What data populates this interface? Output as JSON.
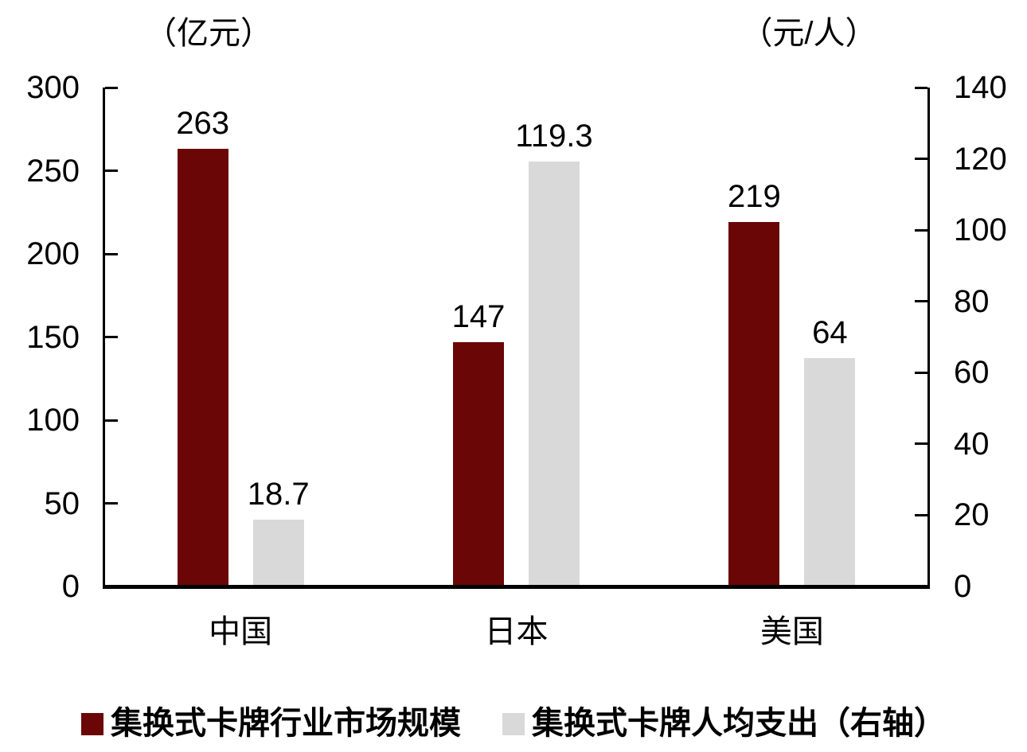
{
  "chart_data": {
    "type": "bar",
    "categories": [
      "中国",
      "日本",
      "美国"
    ],
    "category_ids": [
      "china",
      "japan",
      "usa"
    ],
    "series": [
      {
        "id": "market-size",
        "name": "集换式卡牌行业市场规模",
        "axis": "left",
        "color": "#6a0605",
        "values": [
          263,
          147,
          219
        ],
        "labels": [
          "263",
          "147",
          "219"
        ]
      },
      {
        "id": "per-capita-spending",
        "name": "集换式卡牌人均支出（右轴）",
        "axis": "right",
        "color": "#d9d9d9",
        "values": [
          18.7,
          119.3,
          64
        ],
        "labels": [
          "18.7",
          "119.3",
          "64"
        ]
      }
    ],
    "left_axis": {
      "title": "（亿元）",
      "min": 0,
      "max": 300,
      "ticks": [
        300,
        250,
        200,
        150,
        100,
        50,
        0
      ]
    },
    "right_axis": {
      "title": "（元/人）",
      "min": 0,
      "max": 140,
      "ticks": [
        140,
        120,
        100,
        80,
        60,
        40,
        20,
        0
      ]
    },
    "grid": false,
    "legend_position": "bottom",
    "axis_color": "#000000",
    "background_color": "#ffffff"
  }
}
